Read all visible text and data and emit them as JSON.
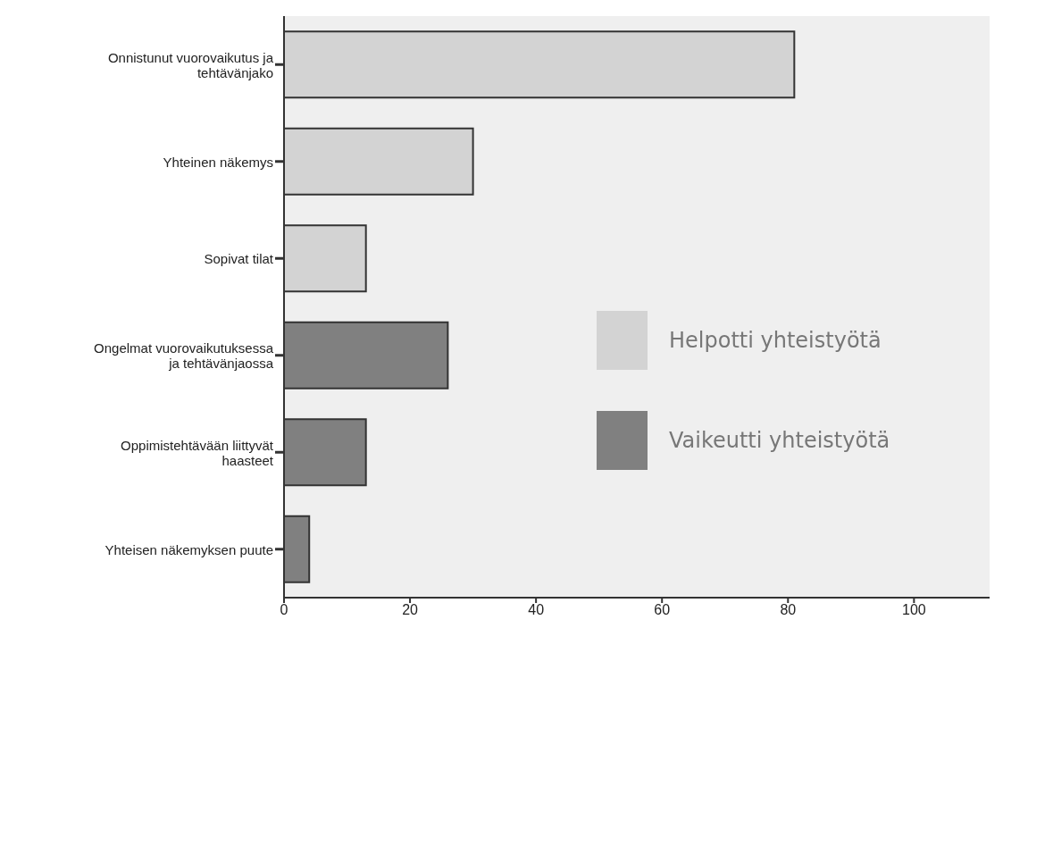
{
  "chart_data": {
    "type": "bar",
    "orientation": "horizontal",
    "stacked": true,
    "categories": [
      "Onnistunut vuorovaikutus ja tehtävänjako",
      "Yhteinen näkemys",
      "Sopivat tilat",
      "Ongelmat vuorovaikutuksessa ja tehtävänjaossa",
      "Oppimistehtävään liittyvät haasteet",
      "Yhteisen näkemyksen puute"
    ],
    "series": [
      {
        "name": "Helpotti yhteistyötä",
        "color": "#d3d3d3",
        "values": [
          81,
          30,
          13,
          null,
          null,
          null
        ]
      },
      {
        "name": "Vaikeutti yhteistyötä",
        "color": "#808080",
        "values": [
          null,
          null,
          null,
          26,
          13,
          4
        ]
      }
    ],
    "xlim": [
      0,
      112
    ],
    "xticks": [
      0,
      20,
      40,
      60,
      80,
      100
    ],
    "grid": false,
    "legend": "right"
  }
}
